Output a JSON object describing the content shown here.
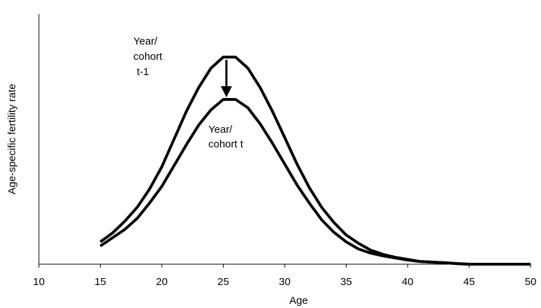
{
  "chart_data": {
    "type": "line",
    "x": [
      15,
      16,
      17,
      18,
      19,
      20,
      21,
      22,
      23,
      24,
      25,
      26,
      27,
      28,
      29,
      30,
      31,
      32,
      33,
      34,
      35,
      36,
      37,
      38,
      39,
      40,
      41,
      42,
      43,
      44,
      45,
      46,
      47,
      48,
      49,
      50
    ],
    "series": [
      {
        "color": "#000000",
        "values": [
          10.7,
          15,
          20.7,
          27.3,
          36,
          46.7,
          60,
          73.3,
          84.7,
          94,
          99.3,
          99.3,
          94,
          84.7,
          73.3,
          60.7,
          48,
          36.7,
          27.3,
          20,
          14,
          10,
          6.7,
          4.7,
          3.3,
          2.3,
          1.3,
          1,
          0.7,
          0.3,
          0,
          0,
          0,
          0,
          0,
          0
        ]
      },
      {
        "color": "#000000",
        "values": [
          8.7,
          12.7,
          16.7,
          22,
          29.3,
          37.3,
          47.3,
          57.3,
          66.7,
          74,
          79,
          79,
          75,
          67.3,
          58,
          48,
          38,
          29.3,
          21.3,
          15.3,
          10.7,
          7.3,
          5.3,
          4,
          3,
          2,
          1.3,
          1,
          0.7,
          0.3,
          0,
          0,
          0,
          0,
          0,
          0
        ]
      }
    ],
    "xlabel": "Age",
    "ylabel": "Age-specific fertility rate",
    "xlim": [
      10,
      50
    ],
    "xticks": [
      10,
      15,
      20,
      25,
      30,
      35,
      40,
      45,
      50
    ],
    "ylim": [
      0,
      100
    ],
    "yticks": [],
    "annotations": [
      [
        "Year/",
        "cohort",
        "t-1"
      ],
      [
        "Year/",
        "cohort t"
      ]
    ]
  }
}
